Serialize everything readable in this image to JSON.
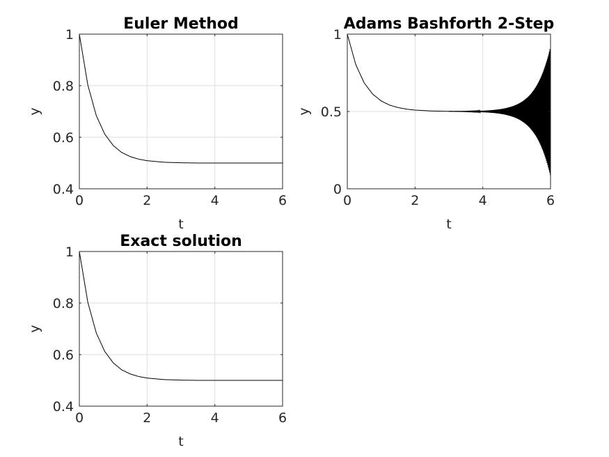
{
  "chart_data": [
    {
      "type": "line",
      "title": "Euler Method",
      "xlabel": "t",
      "ylabel": "y",
      "xlim": [
        0,
        6
      ],
      "ylim": [
        0.4,
        1
      ],
      "xticks": [
        0,
        2,
        4,
        6
      ],
      "yticks": [
        0.4,
        0.6,
        0.8,
        1
      ],
      "xtick_labels": [
        "0",
        "2",
        "4",
        "6"
      ],
      "ytick_labels": [
        "0.4",
        "0.6",
        "0.8",
        "1"
      ],
      "grid": true,
      "series": [
        {
          "x": [
            0,
            0.25,
            0.5,
            0.75,
            1,
            1.25,
            1.5,
            1.75,
            2,
            2.5,
            3,
            3.5,
            4,
            4.5,
            5,
            5.5,
            6
          ],
          "y": [
            1,
            0.803,
            0.684,
            0.612,
            0.568,
            0.541,
            0.525,
            0.515,
            0.509,
            0.503,
            0.501,
            0.5,
            0.5,
            0.5,
            0.5,
            0.5,
            0.5
          ]
        }
      ]
    },
    {
      "type": "line",
      "title": "Adams Bashforth 2-Step",
      "xlabel": "t",
      "ylabel": "y",
      "xlim": [
        0,
        6
      ],
      "ylim": [
        0,
        1
      ],
      "xticks": [
        0,
        2,
        4,
        6
      ],
      "yticks": [
        0,
        0.5,
        1
      ],
      "xtick_labels": [
        "0",
        "2",
        "4",
        "6"
      ],
      "ytick_labels": [
        "0",
        "0.5",
        "1"
      ],
      "grid": true,
      "series": [
        {
          "x": [
            0,
            0.25,
            0.5,
            0.75,
            1,
            1.25,
            1.5,
            1.75,
            2,
            2.5,
            3,
            3.5,
            4,
            4.5,
            5,
            5.5,
            6
          ],
          "y": [
            1,
            0.803,
            0.684,
            0.612,
            0.568,
            0.541,
            0.525,
            0.515,
            0.509,
            0.503,
            0.501,
            0.5,
            0.5,
            0.5,
            0.5,
            0.5,
            0.5
          ]
        }
      ],
      "oscillation": {
        "t_start": 3,
        "t_end": 6,
        "amplitude_end": 0.42
      }
    },
    {
      "type": "line",
      "title": "Exact solution",
      "xlabel": "t",
      "ylabel": "y",
      "xlim": [
        0,
        6
      ],
      "ylim": [
        0.4,
        1
      ],
      "xticks": [
        0,
        2,
        4,
        6
      ],
      "yticks": [
        0.4,
        0.6,
        0.8,
        1
      ],
      "xtick_labels": [
        "0",
        "2",
        "4",
        "6"
      ],
      "ytick_labels": [
        "0.4",
        "0.6",
        "0.8",
        "1"
      ],
      "grid": true,
      "series": [
        {
          "x": [
            0,
            0.25,
            0.5,
            0.75,
            1,
            1.25,
            1.5,
            1.75,
            2,
            2.5,
            3,
            3.5,
            4,
            4.5,
            5,
            5.5,
            6
          ],
          "y": [
            1,
            0.803,
            0.684,
            0.612,
            0.568,
            0.541,
            0.525,
            0.515,
            0.509,
            0.503,
            0.501,
            0.5,
            0.5,
            0.5,
            0.5,
            0.5,
            0.5
          ]
        }
      ]
    }
  ]
}
